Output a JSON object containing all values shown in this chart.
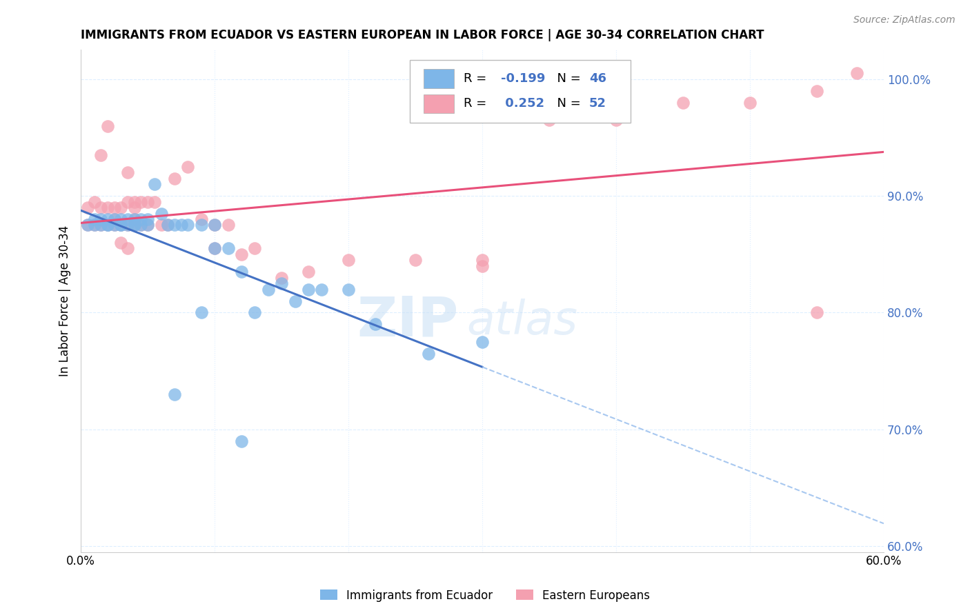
{
  "title": "IMMIGRANTS FROM ECUADOR VS EASTERN EUROPEAN IN LABOR FORCE | AGE 30-34 CORRELATION CHART",
  "source": "Source: ZipAtlas.com",
  "ylabel": "In Labor Force | Age 30-34",
  "xlim": [
    0.0,
    0.6
  ],
  "ylim": [
    0.595,
    1.025
  ],
  "xticks": [
    0.0,
    0.1,
    0.2,
    0.3,
    0.4,
    0.5,
    0.6
  ],
  "yticks_right": [
    1.0,
    0.9,
    0.8,
    0.7,
    0.6
  ],
  "ecuador_R": -0.199,
  "ecuador_N": 46,
  "eastern_R": 0.252,
  "eastern_N": 52,
  "ecuador_color": "#7EB6E8",
  "eastern_color": "#F4A0B0",
  "ecuador_line_color": "#4472C4",
  "eastern_line_color": "#E8507A",
  "ecuador_dash_color": "#A8C8F0",
  "ecuador_x": [
    0.005,
    0.01,
    0.01,
    0.015,
    0.015,
    0.02,
    0.02,
    0.02,
    0.025,
    0.025,
    0.03,
    0.03,
    0.03,
    0.035,
    0.035,
    0.04,
    0.04,
    0.04,
    0.045,
    0.045,
    0.05,
    0.05,
    0.055,
    0.06,
    0.065,
    0.07,
    0.075,
    0.08,
    0.09,
    0.1,
    0.1,
    0.11,
    0.12,
    0.14,
    0.15,
    0.16,
    0.17,
    0.18,
    0.2,
    0.22,
    0.26,
    0.3,
    0.07,
    0.12,
    0.09,
    0.13
  ],
  "ecuador_y": [
    0.875,
    0.875,
    0.88,
    0.875,
    0.88,
    0.875,
    0.88,
    0.875,
    0.875,
    0.88,
    0.875,
    0.88,
    0.875,
    0.875,
    0.88,
    0.875,
    0.88,
    0.875,
    0.875,
    0.88,
    0.875,
    0.88,
    0.91,
    0.885,
    0.875,
    0.875,
    0.875,
    0.875,
    0.875,
    0.875,
    0.855,
    0.855,
    0.835,
    0.82,
    0.825,
    0.81,
    0.82,
    0.82,
    0.82,
    0.79,
    0.765,
    0.775,
    0.73,
    0.69,
    0.8,
    0.8
  ],
  "eastern_x": [
    0.005,
    0.005,
    0.01,
    0.01,
    0.015,
    0.015,
    0.02,
    0.02,
    0.025,
    0.025,
    0.03,
    0.03,
    0.035,
    0.035,
    0.04,
    0.04,
    0.045,
    0.045,
    0.05,
    0.05,
    0.055,
    0.06,
    0.065,
    0.07,
    0.08,
    0.09,
    0.1,
    0.11,
    0.13,
    0.15,
    0.17,
    0.2,
    0.25,
    0.3,
    0.35,
    0.4,
    0.45,
    0.5,
    0.55,
    0.58,
    0.015,
    0.02,
    0.025,
    0.03,
    0.035,
    0.04,
    0.1,
    0.12,
    0.3,
    0.55,
    0.035,
    0.04
  ],
  "eastern_y": [
    0.875,
    0.89,
    0.875,
    0.895,
    0.875,
    0.89,
    0.875,
    0.89,
    0.875,
    0.89,
    0.875,
    0.89,
    0.875,
    0.895,
    0.875,
    0.89,
    0.875,
    0.895,
    0.875,
    0.895,
    0.895,
    0.875,
    0.875,
    0.915,
    0.925,
    0.88,
    0.875,
    0.875,
    0.855,
    0.83,
    0.835,
    0.845,
    0.845,
    0.845,
    0.965,
    0.965,
    0.98,
    0.98,
    0.99,
    1.005,
    0.935,
    0.96,
    0.88,
    0.86,
    0.92,
    0.895,
    0.855,
    0.85,
    0.84,
    0.8,
    0.855,
    0.88
  ],
  "watermark_zip": "ZIP",
  "watermark_atlas": "atlas",
  "background_color": "#FFFFFF",
  "grid_color": "#DDEEFF",
  "grid_style": "--"
}
